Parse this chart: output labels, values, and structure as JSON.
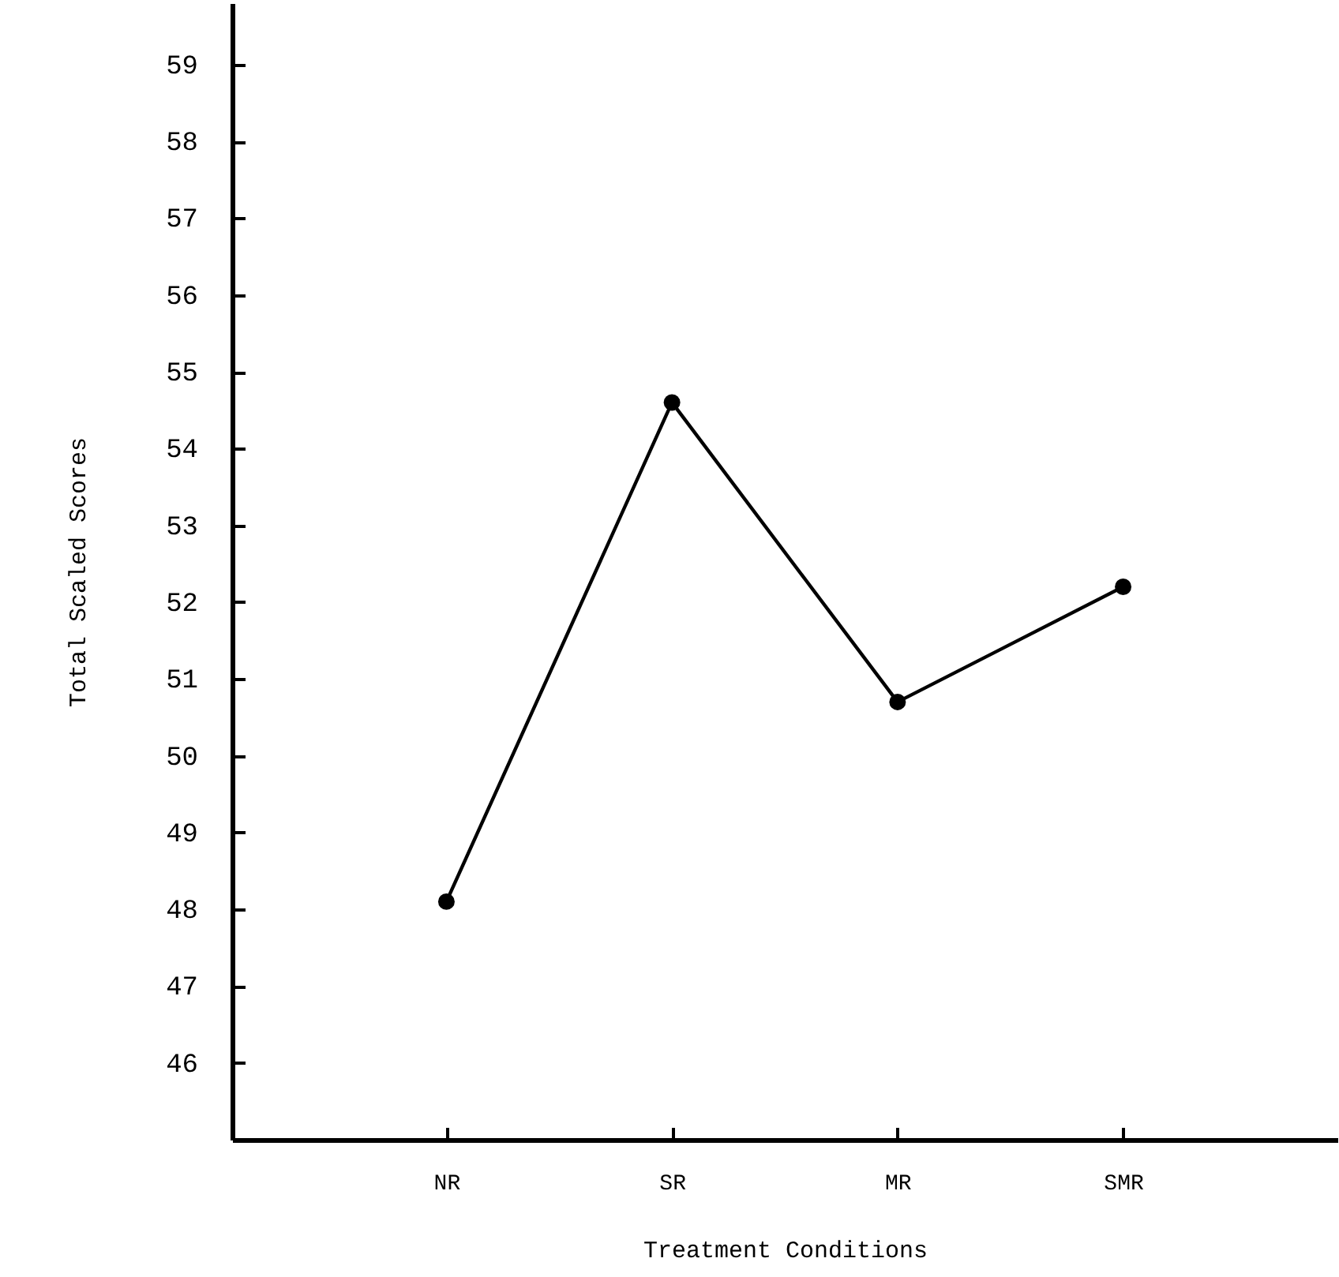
{
  "chart_data": {
    "type": "line",
    "xlabel": "Treatment Conditions",
    "ylabel": "Total Scaled Scores",
    "categories": [
      "NR",
      "SR",
      "MR",
      "SMR"
    ],
    "series": [
      {
        "color": "#000000",
        "values": [
          48.1,
          54.6,
          50.7,
          52.2
        ]
      }
    ],
    "ylim": [
      45,
      59.8
    ],
    "yticks": [
      46,
      47,
      48,
      49,
      50,
      51,
      52,
      53,
      54,
      55,
      56,
      57,
      58,
      59
    ],
    "grid": false,
    "marker": "circle",
    "line_style": "solid"
  }
}
